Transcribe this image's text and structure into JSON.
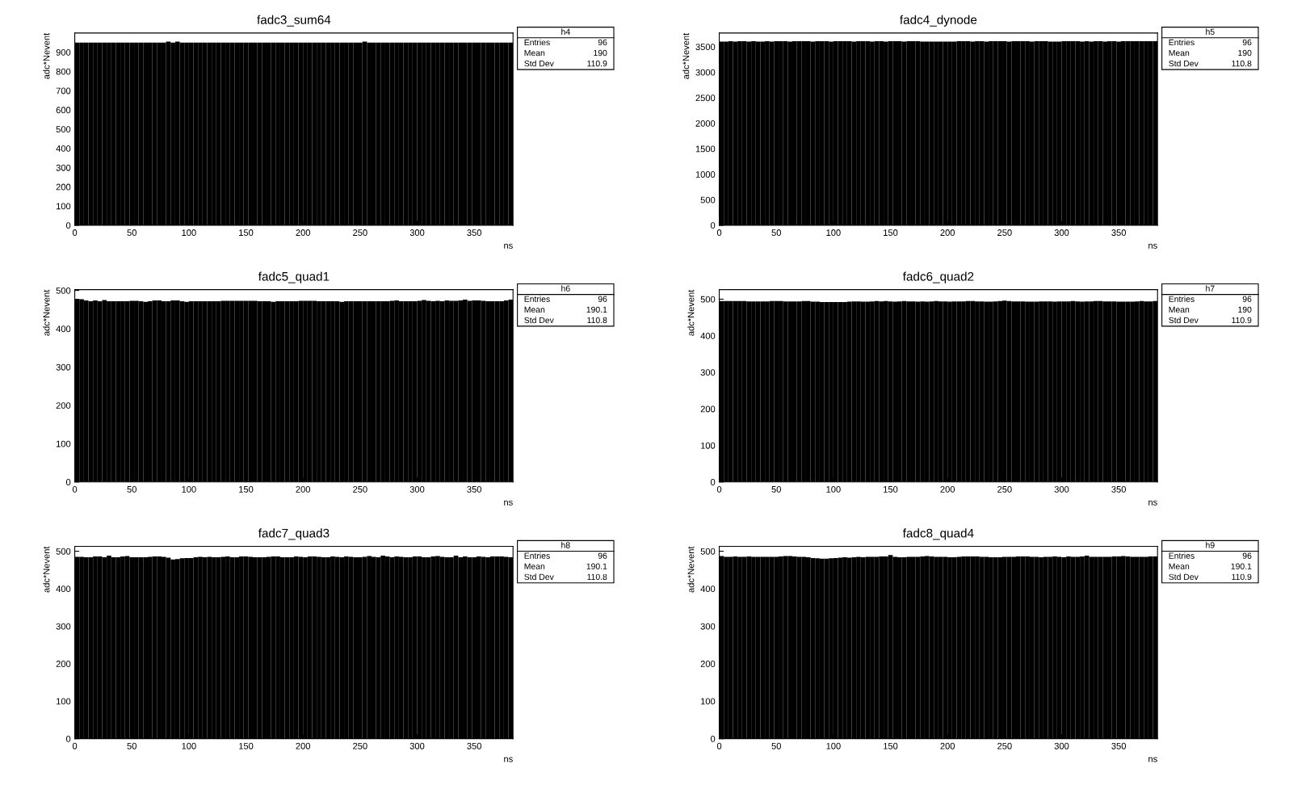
{
  "chart_data": [
    {
      "type": "histogram",
      "title": "fadc3_sum64",
      "xlabel": "ns",
      "ylabel": "adc*Nevent",
      "color": "#000000",
      "bins": [
        0,
        4,
        8,
        12,
        16,
        20,
        24,
        28,
        32,
        36,
        40,
        44,
        48,
        52,
        56,
        60,
        64,
        68,
        72,
        76,
        80,
        84,
        88,
        92,
        96,
        100,
        104,
        108,
        112,
        116,
        120,
        124,
        128,
        132,
        136,
        140,
        144,
        148,
        152,
        156,
        160,
        164,
        168,
        172,
        176,
        180,
        184,
        188,
        192,
        196,
        200,
        204,
        208,
        212,
        216,
        220,
        224,
        228,
        232,
        236,
        240,
        244,
        248,
        252,
        256,
        260,
        264,
        268,
        272,
        276,
        280,
        284,
        288,
        292,
        296,
        300,
        304,
        308,
        312,
        316,
        320,
        324,
        328,
        332,
        336,
        340,
        344,
        348,
        352,
        356,
        360,
        364,
        368,
        372,
        376,
        380,
        384
      ],
      "values": [
        950,
        950,
        950,
        950,
        950,
        950,
        950,
        950,
        950,
        950,
        950,
        950,
        950,
        950,
        950,
        950,
        950,
        950,
        950,
        950,
        955,
        950,
        955,
        950,
        950,
        950,
        950,
        950,
        950,
        950,
        950,
        950,
        950,
        950,
        950,
        950,
        950,
        950,
        950,
        950,
        950,
        950,
        950,
        950,
        950,
        950,
        950,
        950,
        950,
        950,
        950,
        950,
        950,
        950,
        950,
        950,
        950,
        950,
        950,
        950,
        950,
        950,
        950,
        955,
        950,
        950,
        950,
        950,
        950,
        950,
        950,
        950,
        950,
        950,
        950,
        950,
        950,
        950,
        950,
        950,
        950,
        950,
        950,
        950,
        950,
        950,
        950,
        950,
        950,
        950,
        950,
        950,
        950,
        950,
        950,
        950
      ],
      "xlim": [
        0,
        384
      ],
      "ylim": [
        0,
        1000
      ],
      "xticks": [
        0,
        50,
        100,
        150,
        200,
        250,
        300,
        350
      ],
      "yticks": [
        0,
        100,
        200,
        300,
        400,
        500,
        600,
        700,
        800,
        900
      ],
      "annotations": [
        "h4",
        "Entries",
        "96",
        "Mean",
        "190",
        "Std Dev",
        "110.9"
      ]
    },
    {
      "type": "histogram",
      "title": "fadc4_dynode",
      "xlabel": "ns",
      "ylabel": "adc*Nevent",
      "color": "#000000",
      "bins": [
        0,
        4,
        8,
        12,
        16,
        20,
        24,
        28,
        32,
        36,
        40,
        44,
        48,
        52,
        56,
        60,
        64,
        68,
        72,
        76,
        80,
        84,
        88,
        92,
        96,
        100,
        104,
        108,
        112,
        116,
        120,
        124,
        128,
        132,
        136,
        140,
        144,
        148,
        152,
        156,
        160,
        164,
        168,
        172,
        176,
        180,
        184,
        188,
        192,
        196,
        200,
        204,
        208,
        212,
        216,
        220,
        224,
        228,
        232,
        236,
        240,
        244,
        248,
        252,
        256,
        260,
        264,
        268,
        272,
        276,
        280,
        284,
        288,
        292,
        296,
        300,
        304,
        308,
        312,
        316,
        320,
        324,
        328,
        332,
        336,
        340,
        344,
        348,
        352,
        356,
        360,
        364,
        368,
        372,
        376,
        380,
        384
      ],
      "values": [
        3600,
        3600,
        3610,
        3600,
        3610,
        3610,
        3600,
        3610,
        3600,
        3600,
        3610,
        3600,
        3610,
        3610,
        3610,
        3600,
        3610,
        3610,
        3610,
        3610,
        3600,
        3610,
        3610,
        3610,
        3600,
        3610,
        3610,
        3610,
        3610,
        3600,
        3610,
        3610,
        3610,
        3600,
        3610,
        3610,
        3600,
        3610,
        3610,
        3610,
        3600,
        3610,
        3610,
        3610,
        3600,
        3600,
        3600,
        3600,
        3600,
        3600,
        3600,
        3600,
        3610,
        3610,
        3610,
        3600,
        3610,
        3610,
        3600,
        3610,
        3610,
        3610,
        3610,
        3600,
        3610,
        3610,
        3610,
        3610,
        3600,
        3610,
        3610,
        3610,
        3600,
        3600,
        3600,
        3610,
        3610,
        3610,
        3610,
        3600,
        3610,
        3600,
        3610,
        3610,
        3600,
        3610,
        3610,
        3600,
        3610,
        3610,
        3610,
        3610,
        3610,
        3610,
        3610,
        3610
      ],
      "xlim": [
        0,
        384
      ],
      "ylim": [
        0,
        3770
      ],
      "xticks": [
        0,
        50,
        100,
        150,
        200,
        250,
        300,
        350
      ],
      "yticks": [
        0,
        500,
        1000,
        1500,
        2000,
        2500,
        3000,
        3500
      ],
      "annotations": [
        "h5",
        "Entries",
        "96",
        "Mean",
        "190",
        "Std Dev",
        "110.8"
      ]
    },
    {
      "type": "histogram",
      "title": "fadc5_quad1",
      "xlabel": "ns",
      "ylabel": "adc*Nevent",
      "color": "#000000",
      "bins": [
        0,
        4,
        8,
        12,
        16,
        20,
        24,
        28,
        32,
        36,
        40,
        44,
        48,
        52,
        56,
        60,
        64,
        68,
        72,
        76,
        80,
        84,
        88,
        92,
        96,
        100,
        104,
        108,
        112,
        116,
        120,
        124,
        128,
        132,
        136,
        140,
        144,
        148,
        152,
        156,
        160,
        164,
        168,
        172,
        176,
        180,
        184,
        188,
        192,
        196,
        200,
        204,
        208,
        212,
        216,
        220,
        224,
        228,
        232,
        236,
        240,
        244,
        248,
        252,
        256,
        260,
        264,
        268,
        272,
        276,
        280,
        284,
        288,
        292,
        296,
        300,
        304,
        308,
        312,
        316,
        320,
        324,
        328,
        332,
        336,
        340,
        344,
        348,
        352,
        356,
        360,
        364,
        368,
        372,
        376,
        380,
        384
      ],
      "values": [
        478,
        477,
        474,
        472,
        474,
        472,
        475,
        472,
        472,
        472,
        472,
        472,
        473,
        473,
        472,
        470,
        472,
        474,
        474,
        472,
        472,
        474,
        474,
        472,
        470,
        472,
        472,
        472,
        472,
        472,
        472,
        472,
        473,
        473,
        473,
        473,
        473,
        473,
        473,
        473,
        472,
        472,
        472,
        470,
        472,
        472,
        472,
        472,
        472,
        473,
        473,
        473,
        473,
        472,
        472,
        472,
        472,
        472,
        470,
        472,
        472,
        472,
        472,
        472,
        472,
        472,
        472,
        472,
        472,
        473,
        474,
        472,
        472,
        472,
        472,
        473,
        475,
        473,
        472,
        473,
        472,
        474,
        473,
        473,
        474,
        476,
        473,
        474,
        474,
        473,
        472,
        472,
        472,
        472,
        474,
        476
      ],
      "xlim": [
        0,
        384
      ],
      "ylim": [
        0,
        502
      ],
      "xticks": [
        0,
        50,
        100,
        150,
        200,
        250,
        300,
        350
      ],
      "yticks": [
        0,
        100,
        200,
        300,
        400,
        500
      ],
      "annotations": [
        "h6",
        "Entries",
        "96",
        "Mean",
        "190.1",
        "Std Dev",
        "110.8"
      ]
    },
    {
      "type": "histogram",
      "title": "fadc6_quad2",
      "xlabel": "ns",
      "ylabel": "adc*Nevent",
      "color": "#000000",
      "bins": [
        0,
        4,
        8,
        12,
        16,
        20,
        24,
        28,
        32,
        36,
        40,
        44,
        48,
        52,
        56,
        60,
        64,
        68,
        72,
        76,
        80,
        84,
        88,
        92,
        96,
        100,
        104,
        108,
        112,
        116,
        120,
        124,
        128,
        132,
        136,
        140,
        144,
        148,
        152,
        156,
        160,
        164,
        168,
        172,
        176,
        180,
        184,
        188,
        192,
        196,
        200,
        204,
        208,
        212,
        216,
        220,
        224,
        228,
        232,
        236,
        240,
        244,
        248,
        252,
        256,
        260,
        264,
        268,
        272,
        276,
        280,
        284,
        288,
        292,
        296,
        300,
        304,
        308,
        312,
        316,
        320,
        324,
        328,
        332,
        336,
        340,
        344,
        348,
        352,
        356,
        360,
        364,
        368,
        372,
        376,
        380,
        384
      ],
      "values": [
        495,
        495,
        495,
        495,
        495,
        495,
        494,
        494,
        494,
        494,
        494,
        495,
        495,
        495,
        494,
        494,
        494,
        494,
        495,
        495,
        493,
        493,
        492,
        492,
        492,
        492,
        492,
        492,
        493,
        494,
        494,
        493,
        493,
        494,
        495,
        494,
        495,
        494,
        493,
        494,
        495,
        494,
        494,
        493,
        494,
        493,
        494,
        495,
        494,
        494,
        493,
        494,
        494,
        494,
        495,
        495,
        494,
        494,
        493,
        493,
        494,
        495,
        496,
        495,
        494,
        494,
        494,
        493,
        493,
        493,
        494,
        494,
        494,
        493,
        494,
        494,
        494,
        495,
        494,
        493,
        494,
        494,
        495,
        495,
        494,
        494,
        494,
        493,
        493,
        493,
        493,
        494,
        495,
        494,
        494,
        495
      ],
      "xlim": [
        0,
        384
      ],
      "ylim": [
        0,
        526
      ],
      "xticks": [
        0,
        50,
        100,
        150,
        200,
        250,
        300,
        350
      ],
      "yticks": [
        0,
        100,
        200,
        300,
        400,
        500
      ],
      "annotations": [
        "h7",
        "Entries",
        "96",
        "Mean",
        "190",
        "Std Dev",
        "110.9"
      ]
    },
    {
      "type": "histogram",
      "title": "fadc7_quad3",
      "xlabel": "ns",
      "ylabel": "adc*Nevent",
      "color": "#000000",
      "bins": [
        0,
        4,
        8,
        12,
        16,
        20,
        24,
        28,
        32,
        36,
        40,
        44,
        48,
        52,
        56,
        60,
        64,
        68,
        72,
        76,
        80,
        84,
        88,
        92,
        96,
        100,
        104,
        108,
        112,
        116,
        120,
        124,
        128,
        132,
        136,
        140,
        144,
        148,
        152,
        156,
        160,
        164,
        168,
        172,
        176,
        180,
        184,
        188,
        192,
        196,
        200,
        204,
        208,
        212,
        216,
        220,
        224,
        228,
        232,
        236,
        240,
        244,
        248,
        252,
        256,
        260,
        264,
        268,
        272,
        276,
        280,
        284,
        288,
        292,
        296,
        300,
        304,
        308,
        312,
        316,
        320,
        324,
        328,
        332,
        336,
        340,
        344,
        348,
        352,
        356,
        360,
        364,
        368,
        372,
        376,
        380,
        384
      ],
      "values": [
        485,
        485,
        484,
        484,
        486,
        486,
        484,
        488,
        484,
        484,
        486,
        487,
        484,
        484,
        484,
        484,
        485,
        486,
        486,
        485,
        483,
        478,
        479,
        481,
        482,
        482,
        484,
        485,
        484,
        485,
        484,
        484,
        485,
        486,
        484,
        484,
        486,
        486,
        485,
        484,
        484,
        484,
        485,
        486,
        486,
        484,
        484,
        484,
        486,
        485,
        484,
        486,
        486,
        485,
        484,
        484,
        486,
        485,
        484,
        486,
        485,
        484,
        484,
        485,
        487,
        485,
        484,
        488,
        486,
        484,
        486,
        485,
        484,
        484,
        486,
        486,
        484,
        484,
        486,
        487,
        485,
        484,
        484,
        488,
        484,
        486,
        484,
        484,
        486,
        485,
        484,
        486,
        486,
        486,
        485,
        484
      ],
      "xlim": [
        0,
        384
      ],
      "ylim": [
        0,
        513
      ],
      "xticks": [
        0,
        50,
        100,
        150,
        200,
        250,
        300,
        350
      ],
      "yticks": [
        0,
        100,
        200,
        300,
        400,
        500
      ],
      "annotations": [
        "h8",
        "Entries",
        "96",
        "Mean",
        "190.1",
        "Std Dev",
        "110.8"
      ]
    },
    {
      "type": "histogram",
      "title": "fadc8_quad4",
      "xlabel": "ns",
      "ylabel": "adc*Nevent",
      "color": "#000000",
      "bins": [
        0,
        4,
        8,
        12,
        16,
        20,
        24,
        28,
        32,
        36,
        40,
        44,
        48,
        52,
        56,
        60,
        64,
        68,
        72,
        76,
        80,
        84,
        88,
        92,
        96,
        100,
        104,
        108,
        112,
        116,
        120,
        124,
        128,
        132,
        136,
        140,
        144,
        148,
        152,
        156,
        160,
        164,
        168,
        172,
        176,
        180,
        184,
        188,
        192,
        196,
        200,
        204,
        208,
        212,
        216,
        220,
        224,
        228,
        232,
        236,
        240,
        244,
        248,
        252,
        256,
        260,
        264,
        268,
        272,
        276,
        280,
        284,
        288,
        292,
        296,
        300,
        304,
        308,
        312,
        316,
        320,
        324,
        328,
        332,
        336,
        340,
        344,
        348,
        352,
        356,
        360,
        364,
        368,
        372,
        376,
        380,
        384
      ],
      "values": [
        487,
        485,
        485,
        486,
        485,
        485,
        486,
        485,
        485,
        485,
        485,
        485,
        485,
        486,
        487,
        487,
        486,
        485,
        485,
        484,
        482,
        481,
        480,
        480,
        481,
        482,
        483,
        484,
        483,
        484,
        485,
        484,
        485,
        485,
        485,
        486,
        486,
        490,
        485,
        484,
        484,
        485,
        485,
        485,
        486,
        487,
        486,
        485,
        485,
        485,
        484,
        484,
        485,
        486,
        486,
        486,
        486,
        485,
        485,
        484,
        484,
        484,
        485,
        485,
        485,
        486,
        486,
        486,
        485,
        485,
        484,
        485,
        485,
        486,
        485,
        484,
        486,
        485,
        485,
        486,
        488,
        485,
        485,
        485,
        485,
        485,
        486,
        486,
        487,
        486,
        485,
        485,
        485,
        485,
        486,
        486
      ],
      "xlim": [
        0,
        384
      ],
      "ylim": [
        0,
        513
      ],
      "xticks": [
        0,
        50,
        100,
        150,
        200,
        250,
        300,
        350
      ],
      "yticks": [
        0,
        100,
        200,
        300,
        400,
        500
      ],
      "annotations": [
        "h9",
        "Entries",
        "96",
        "Mean",
        "190.1",
        "Std Dev",
        "110.9"
      ]
    }
  ]
}
